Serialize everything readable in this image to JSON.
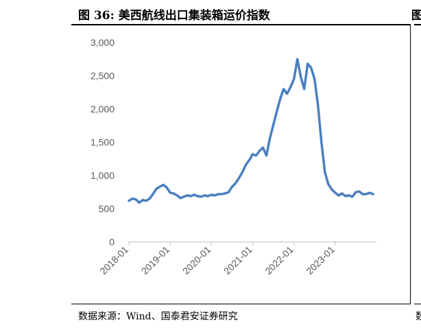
{
  "figure": {
    "title": "图 36:  美西航线出口集装箱运价指数",
    "source": "数据来源：Wind、国泰君安证券研究",
    "next_title_fragment": "图",
    "next_source_fragment": "数"
  },
  "chart_data": {
    "type": "line",
    "title": "",
    "xlabel": "",
    "ylabel": "",
    "ylim": [
      0,
      3000
    ],
    "yticks": [
      0,
      500,
      1000,
      1500,
      2000,
      2500,
      3000
    ],
    "ytick_labels": [
      "0",
      "500",
      "1,000",
      "1,500",
      "2,000",
      "2,500",
      "3,000"
    ],
    "xticks": [
      "2018-01",
      "2019-01",
      "2020-01",
      "2021-01",
      "2022-01",
      "2023-01"
    ],
    "xlim": [
      "2018-01",
      "2023-12"
    ],
    "grid": false,
    "legend": "none",
    "series_color": "#4a7fc1",
    "series": [
      {
        "points": [
          [
            "2018-01",
            620
          ],
          [
            "2018-02",
            650
          ],
          [
            "2018-03",
            640
          ],
          [
            "2018-04",
            590
          ],
          [
            "2018-05",
            630
          ],
          [
            "2018-06",
            620
          ],
          [
            "2018-07",
            650
          ],
          [
            "2018-08",
            720
          ],
          [
            "2018-09",
            800
          ],
          [
            "2018-10",
            830
          ],
          [
            "2018-11",
            860
          ],
          [
            "2018-12",
            820
          ],
          [
            "2019-01",
            740
          ],
          [
            "2019-02",
            730
          ],
          [
            "2019-03",
            700
          ],
          [
            "2019-04",
            660
          ],
          [
            "2019-05",
            680
          ],
          [
            "2019-06",
            700
          ],
          [
            "2019-07",
            690
          ],
          [
            "2019-08",
            710
          ],
          [
            "2019-09",
            690
          ],
          [
            "2019-10",
            680
          ],
          [
            "2019-11",
            700
          ],
          [
            "2019-12",
            690
          ],
          [
            "2020-01",
            710
          ],
          [
            "2020-02",
            700
          ],
          [
            "2020-03",
            720
          ],
          [
            "2020-04",
            720
          ],
          [
            "2020-05",
            730
          ],
          [
            "2020-06",
            750
          ],
          [
            "2020-07",
            830
          ],
          [
            "2020-08",
            880
          ],
          [
            "2020-09",
            960
          ],
          [
            "2020-10",
            1050
          ],
          [
            "2020-11",
            1160
          ],
          [
            "2020-12",
            1230
          ],
          [
            "2021-01",
            1320
          ],
          [
            "2021-02",
            1300
          ],
          [
            "2021-03",
            1370
          ],
          [
            "2021-04",
            1420
          ],
          [
            "2021-05",
            1300
          ],
          [
            "2021-06",
            1560
          ],
          [
            "2021-07",
            1760
          ],
          [
            "2021-08",
            1960
          ],
          [
            "2021-09",
            2150
          ],
          [
            "2021-10",
            2300
          ],
          [
            "2021-11",
            2230
          ],
          [
            "2021-12",
            2330
          ],
          [
            "2022-01",
            2450
          ],
          [
            "2022-02",
            2750
          ],
          [
            "2022-03",
            2480
          ],
          [
            "2022-04",
            2300
          ],
          [
            "2022-05",
            2680
          ],
          [
            "2022-06",
            2620
          ],
          [
            "2022-07",
            2450
          ],
          [
            "2022-08",
            2050
          ],
          [
            "2022-09",
            1500
          ],
          [
            "2022-10",
            1050
          ],
          [
            "2022-11",
            870
          ],
          [
            "2022-12",
            790
          ],
          [
            "2023-01",
            740
          ],
          [
            "2023-02",
            700
          ],
          [
            "2023-03",
            730
          ],
          [
            "2023-04",
            690
          ],
          [
            "2023-05",
            700
          ],
          [
            "2023-06",
            680
          ],
          [
            "2023-07",
            750
          ],
          [
            "2023-08",
            760
          ],
          [
            "2023-09",
            720
          ],
          [
            "2023-10",
            720
          ],
          [
            "2023-11",
            740
          ],
          [
            "2023-12",
            720
          ]
        ]
      }
    ]
  }
}
